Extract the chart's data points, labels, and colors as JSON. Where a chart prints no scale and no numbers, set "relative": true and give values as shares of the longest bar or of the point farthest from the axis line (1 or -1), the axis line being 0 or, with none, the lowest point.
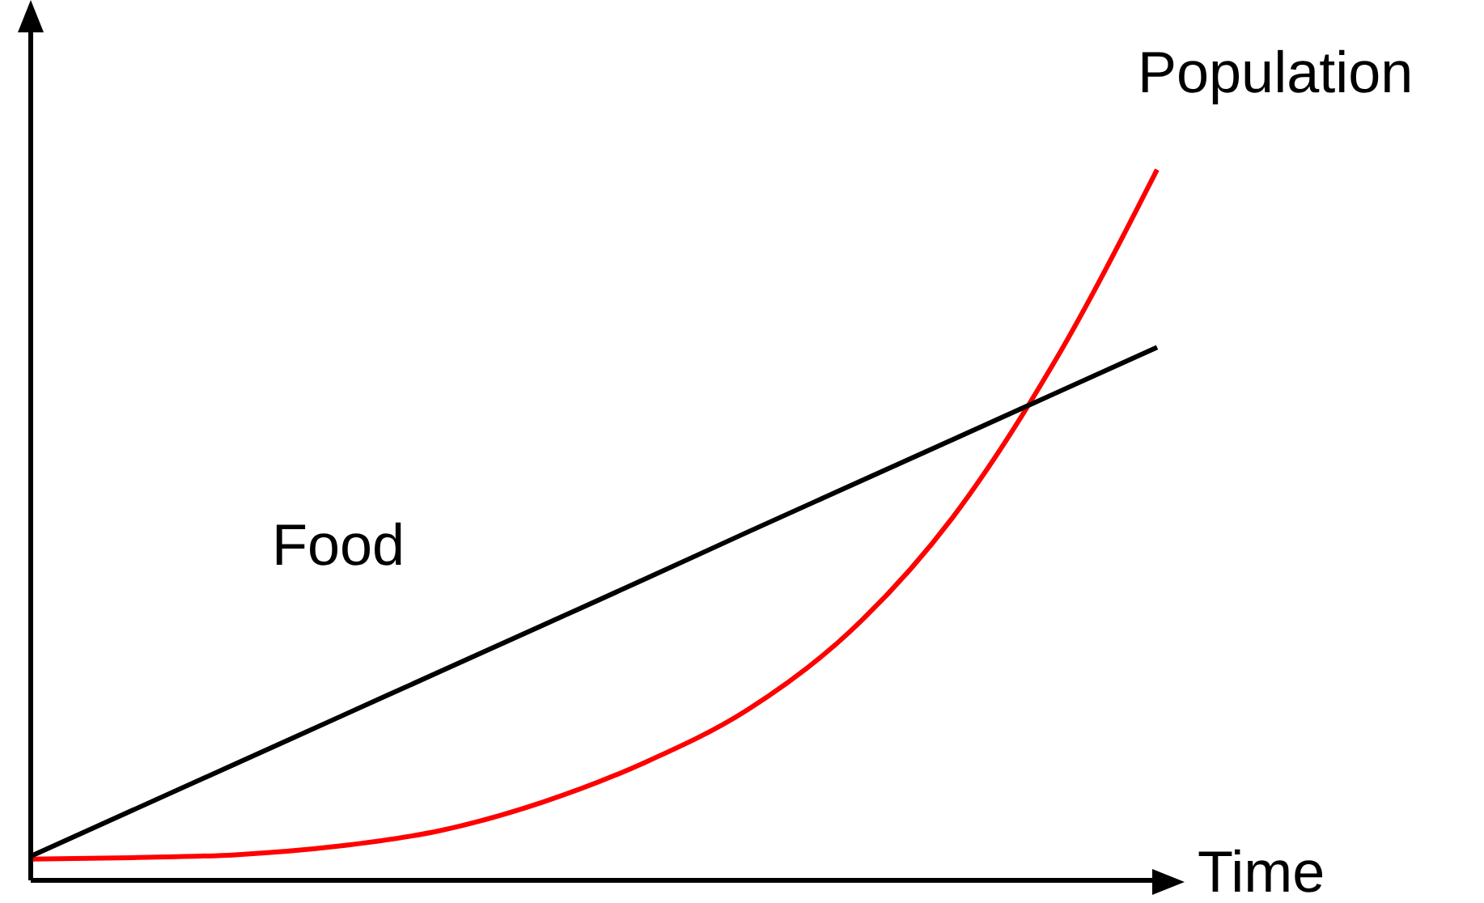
{
  "chart_data": {
    "type": "line",
    "relative": true,
    "xlabel": "Time",
    "categories": [
      null,
      null,
      null,
      null,
      null,
      null,
      null,
      null,
      null,
      null,
      null,
      null
    ],
    "marker": "none",
    "grid": false,
    "legend": false,
    "series": [
      {
        "name": "Population",
        "color": "#ff0000",
        "values": [
          0.03,
          0.032,
          0.036,
          0.048,
          0.07,
          0.11,
          0.166,
          0.24,
          0.35,
          0.51,
          0.73,
          1
        ]
      },
      {
        "name": "Food",
        "color": "#000000",
        "values": [
          0.034,
          0.099,
          0.164,
          0.229,
          0.294,
          0.359,
          0.424,
          0.49,
          0.555,
          0.62,
          0.685,
          0.75
        ]
      }
    ]
  }
}
